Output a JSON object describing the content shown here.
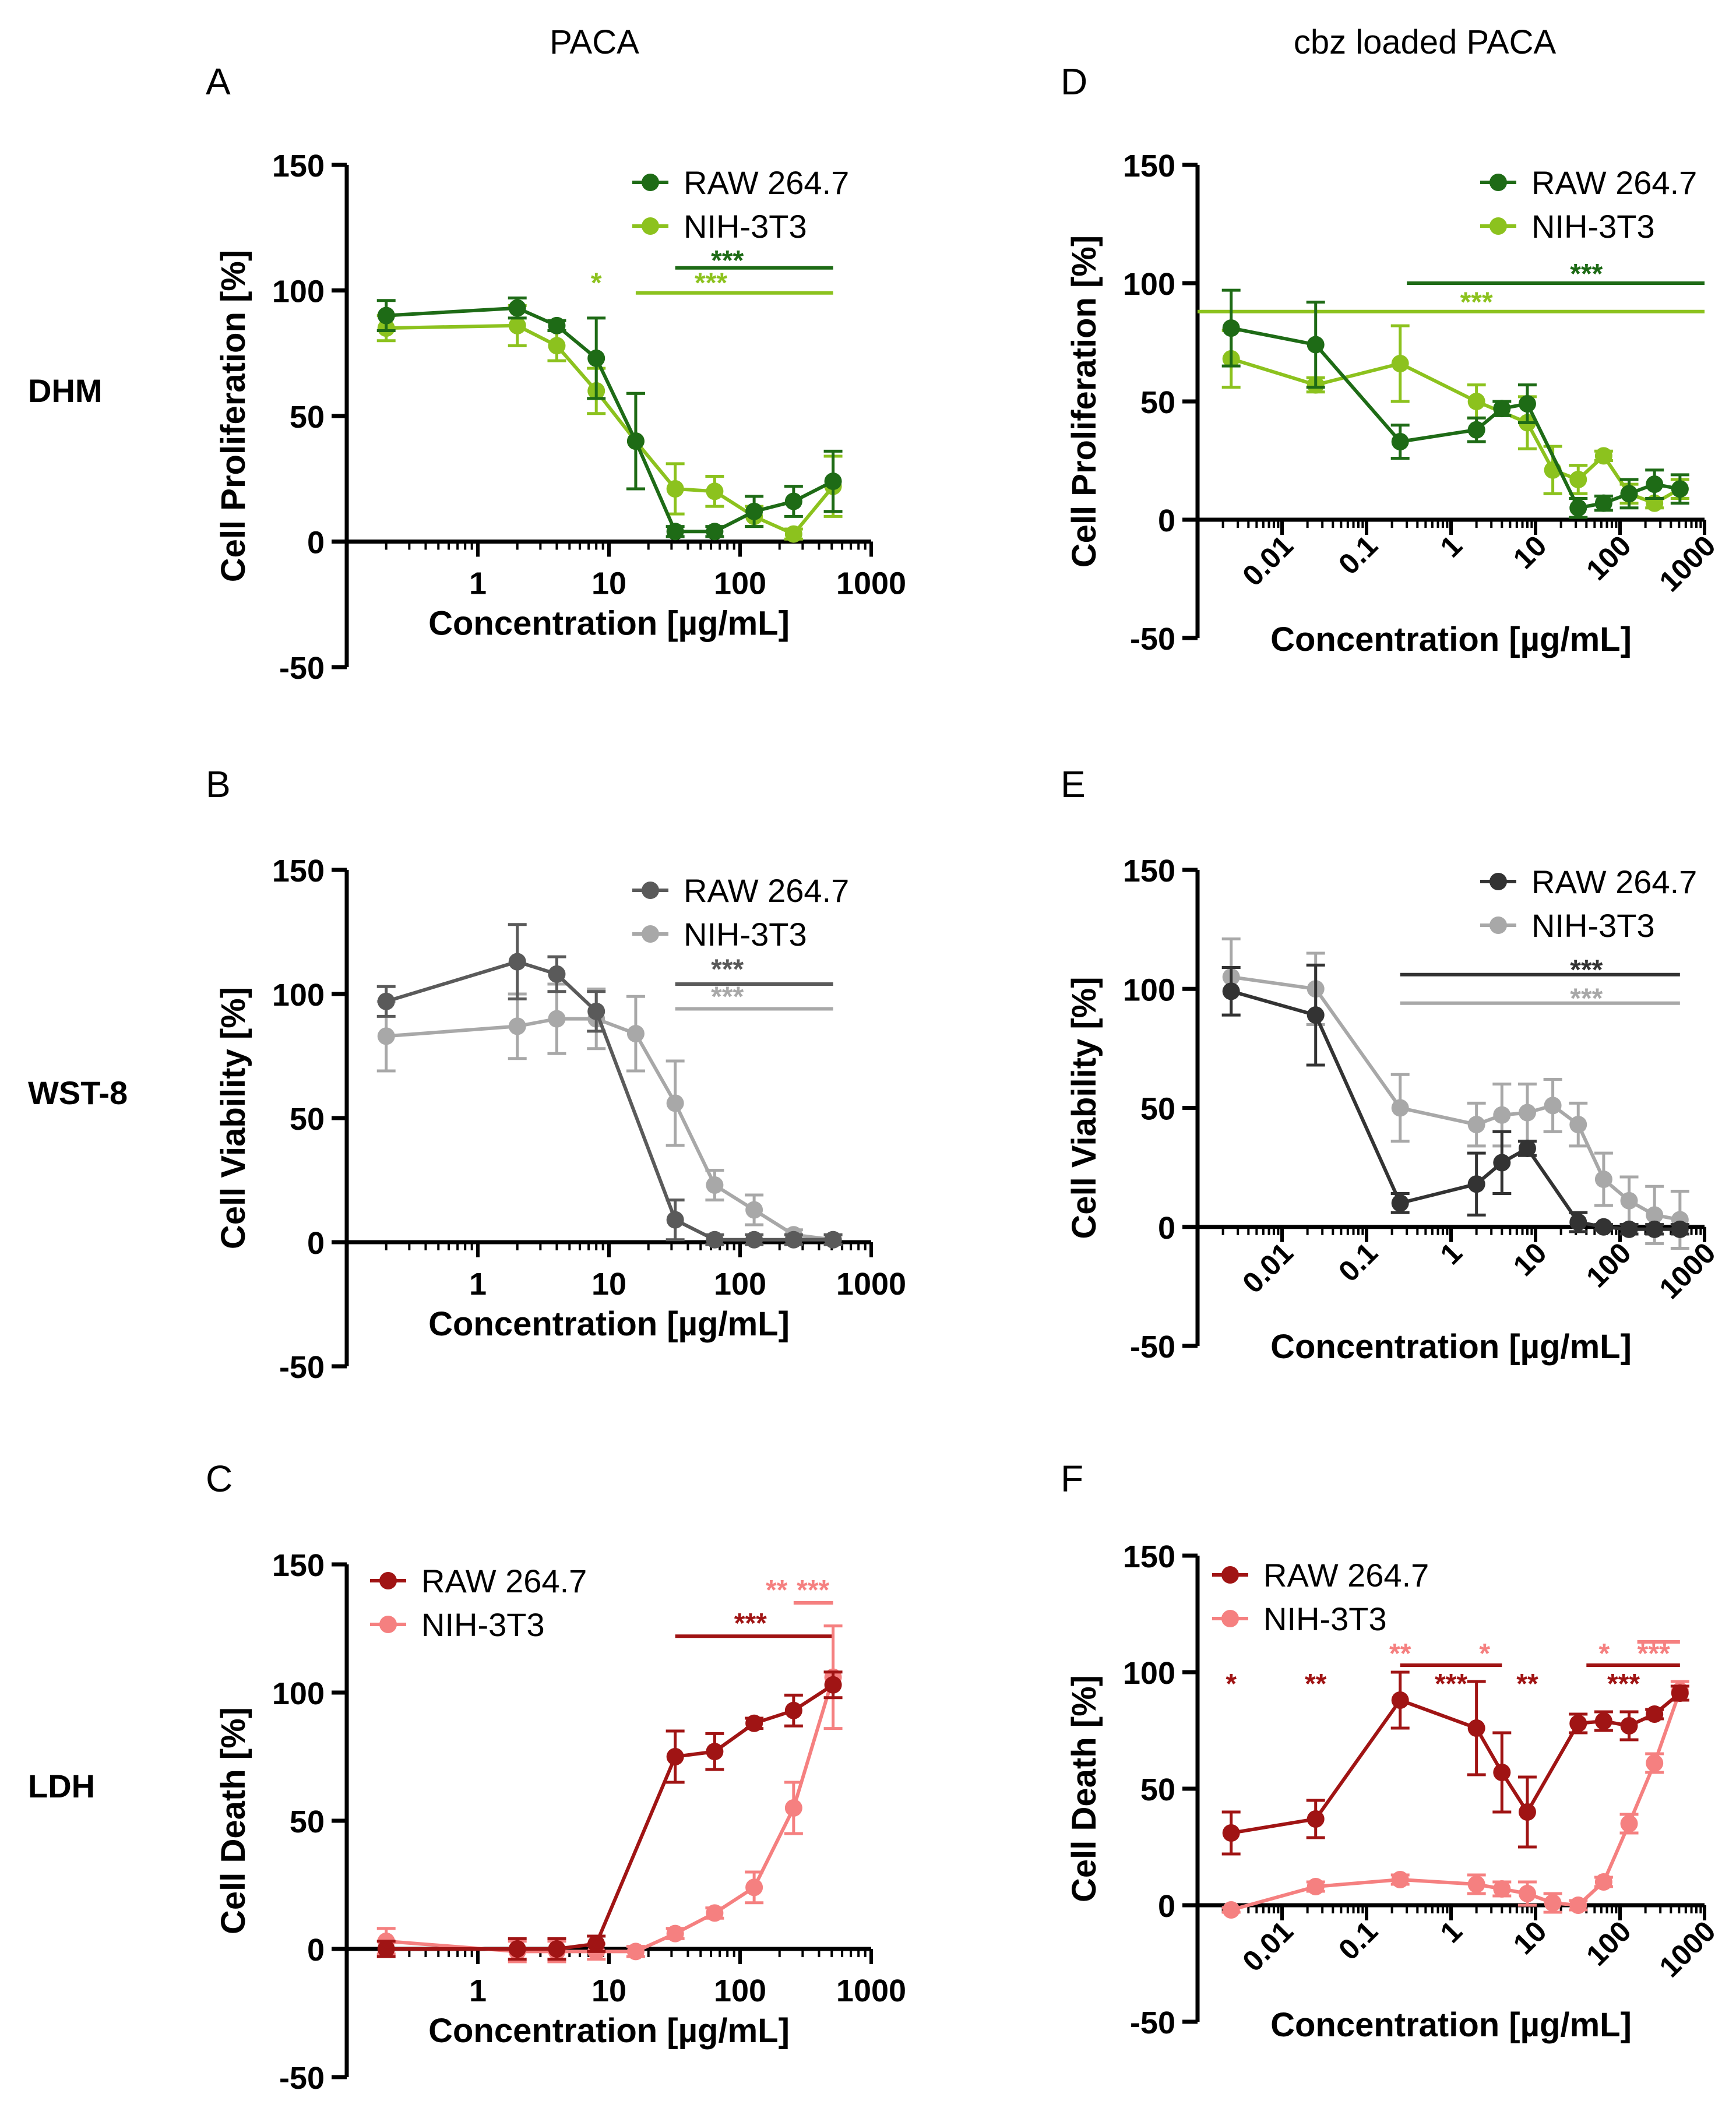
{
  "figure": {
    "column_titles": [
      "PACA",
      "cbz loaded PACA"
    ],
    "row_labels": [
      "DHM",
      "WST-8",
      "LDH"
    ],
    "legend_labels": [
      "RAW 264.7",
      "NIH-3T3"
    ]
  },
  "chart_data": [
    {
      "panel": "A",
      "type": "line",
      "xscale": "log",
      "xlabel": "Concentration [µg/mL]",
      "ylabel": "Cell Proliferation [%]",
      "ylim": [
        -50,
        150
      ],
      "yticks": [
        -50,
        0,
        50,
        100,
        150
      ],
      "xlim": [
        0.1,
        1000
      ],
      "xticks": [
        1,
        10,
        100,
        1000
      ],
      "xtick_labels": [
        "1",
        "10",
        "100",
        "1000"
      ],
      "colors": [
        "#1e6b16",
        "#8cc21e"
      ],
      "legend_position": "top-right",
      "series": [
        {
          "name": "RAW 264.7",
          "x": [
            0.2,
            2,
            4,
            8,
            16,
            32,
            64,
            128,
            256,
            512
          ],
          "y": [
            90,
            93,
            86,
            73,
            40,
            4,
            4,
            12,
            16,
            24
          ],
          "err": [
            6,
            4,
            2,
            16,
            19,
            2,
            2,
            6,
            6,
            12
          ]
        },
        {
          "name": "NIH-3T3",
          "x": [
            0.2,
            2,
            4,
            8,
            16,
            32,
            64,
            128,
            256,
            512
          ],
          "y": [
            85,
            86,
            78,
            60,
            40,
            21,
            20,
            10,
            3,
            22
          ],
          "err": [
            5,
            8,
            6,
            9,
            19,
            10,
            6,
            4,
            2,
            12
          ]
        }
      ],
      "annotations": [
        {
          "text": "*",
          "x": 8,
          "y": 103,
          "color": 1
        },
        {
          "text": "***",
          "x": 80,
          "y": 112,
          "color": 0
        },
        {
          "text": "***",
          "x": 60,
          "y": 103,
          "color": 1
        }
      ],
      "bars": [
        {
          "x1": 32,
          "x2": 512,
          "y": 109,
          "color": 0
        },
        {
          "x1": 16,
          "x2": 512,
          "y": 99,
          "color": 1
        }
      ]
    },
    {
      "panel": "B",
      "type": "line",
      "xscale": "log",
      "xlabel": "Concentration [µg/mL]",
      "ylabel": "Cell Viability [%]",
      "ylim": [
        -50,
        150
      ],
      "yticks": [
        -50,
        0,
        50,
        100,
        150
      ],
      "xlim": [
        0.1,
        1000
      ],
      "xticks": [
        1,
        10,
        100,
        1000
      ],
      "xtick_labels": [
        "1",
        "10",
        "100",
        "1000"
      ],
      "colors": [
        "#5a5a5a",
        "#a8a8a8"
      ],
      "legend_position": "top-right",
      "series": [
        {
          "name": "RAW 264.7",
          "x": [
            0.2,
            2,
            4,
            8,
            32,
            64,
            128,
            256,
            512
          ],
          "y": [
            97,
            113,
            108,
            93,
            9,
            1,
            1,
            1,
            1
          ],
          "err": [
            6,
            15,
            7,
            8,
            8,
            2,
            2,
            2,
            2
          ]
        },
        {
          "name": "NIH-3T3",
          "x": [
            0.2,
            2,
            4,
            8,
            16,
            32,
            64,
            128,
            256,
            512
          ],
          "y": [
            83,
            87,
            90,
            90,
            84,
            56,
            23,
            13,
            3,
            1
          ],
          "err": [
            14,
            13,
            14,
            12,
            15,
            17,
            6,
            6,
            2,
            2
          ]
        }
      ],
      "annotations": [
        {
          "text": "***",
          "x": 80,
          "y": 110,
          "color": 0
        },
        {
          "text": "***",
          "x": 80,
          "y": 99,
          "color": 1
        }
      ],
      "bars": [
        {
          "x1": 32,
          "x2": 512,
          "y": 104,
          "color": 0
        },
        {
          "x1": 32,
          "x2": 512,
          "y": 94,
          "color": 1
        }
      ]
    },
    {
      "panel": "C",
      "type": "line",
      "xscale": "log",
      "xlabel": "Concentration [µg/mL]",
      "ylabel": "Cell Death [%]",
      "ylim": [
        -50,
        150
      ],
      "yticks": [
        -50,
        0,
        50,
        100,
        150
      ],
      "xlim": [
        0.1,
        1000
      ],
      "xticks": [
        1,
        10,
        100,
        1000
      ],
      "xtick_labels": [
        "1",
        "10",
        "100",
        "1000"
      ],
      "colors": [
        "#a01414",
        "#f58080"
      ],
      "legend_position": "top-left",
      "series": [
        {
          "name": "RAW 264.7",
          "x": [
            0.2,
            2,
            4,
            8,
            32,
            64,
            128,
            256,
            512
          ],
          "y": [
            0,
            0,
            0,
            2,
            75,
            77,
            88,
            93,
            103
          ],
          "err": [
            3,
            4,
            4,
            3,
            10,
            7,
            2,
            6,
            5
          ]
        },
        {
          "name": "NIH-3T3",
          "x": [
            0.2,
            2,
            4,
            8,
            16,
            32,
            64,
            128,
            256,
            512
          ],
          "y": [
            3,
            -1,
            -1,
            -1,
            -1,
            6,
            14,
            24,
            55,
            106
          ],
          "err": [
            5,
            4,
            4,
            3,
            2,
            2,
            2,
            6,
            10,
            20
          ]
        }
      ],
      "annotations": [
        {
          "text": "**",
          "x": 190,
          "y": 140,
          "color": 1
        },
        {
          "text": "***",
          "x": 360,
          "y": 140,
          "color": 1
        },
        {
          "text": "***",
          "x": 120,
          "y": 127,
          "color": 0
        }
      ],
      "bars": [
        {
          "x1": 256,
          "x2": 512,
          "y": 135,
          "color": 1
        },
        {
          "x1": 32,
          "x2": 512,
          "y": 122,
          "color": 0
        }
      ]
    },
    {
      "panel": "D",
      "type": "line",
      "xscale": "log",
      "xlabel": "Concentration [µg/mL]",
      "ylabel": "Cell Proliferation [%]",
      "ylim": [
        -50,
        150
      ],
      "yticks": [
        -50,
        0,
        50,
        100,
        150
      ],
      "xlim": [
        0.001,
        1000
      ],
      "xticks": [
        0.01,
        0.1,
        1,
        10,
        100,
        1000
      ],
      "xtick_labels": [
        "0.01",
        "0.1",
        "1",
        "10",
        "100",
        "1000"
      ],
      "colors": [
        "#1e6b16",
        "#8cc21e"
      ],
      "legend_position": "top-right",
      "series": [
        {
          "name": "RAW 264.7",
          "x": [
            0.0025,
            0.025,
            0.25,
            2,
            4,
            8,
            32,
            64,
            128,
            256,
            512
          ],
          "y": [
            81,
            74,
            33,
            38,
            47,
            49,
            5,
            7,
            11,
            15,
            13
          ],
          "err": [
            16,
            18,
            7,
            5,
            3,
            8,
            4,
            3,
            6,
            6,
            6
          ]
        },
        {
          "name": "NIH-3T3",
          "x": [
            0.0025,
            0.025,
            0.25,
            2,
            8,
            16,
            32,
            64,
            128,
            256,
            512
          ],
          "y": [
            68,
            57,
            66,
            50,
            41,
            21,
            17,
            27,
            11,
            7,
            13
          ],
          "err": [
            12,
            3,
            16,
            7,
            11,
            10,
            6,
            2,
            4,
            2,
            4
          ]
        }
      ],
      "annotations": [
        {
          "text": "***",
          "x": 40,
          "y": 104,
          "color": 0
        },
        {
          "text": "***",
          "x": 2,
          "y": 92,
          "color": 1
        }
      ],
      "bars": [
        {
          "x1": 0.3,
          "x2": 1000,
          "y": 100,
          "color": 0
        },
        {
          "x1": 0.001,
          "x2": 1000,
          "y": 88,
          "color": 1
        }
      ]
    },
    {
      "panel": "E",
      "type": "line",
      "xscale": "log",
      "xlabel": "Concentration [µg/mL]",
      "ylabel": "Cell Viability [%]",
      "ylim": [
        -50,
        150
      ],
      "yticks": [
        -50,
        0,
        50,
        100,
        150
      ],
      "xlim": [
        0.001,
        1000
      ],
      "xticks": [
        0.01,
        0.1,
        1,
        10,
        100,
        1000
      ],
      "xtick_labels": [
        "0.01",
        "0.1",
        "1",
        "10",
        "100",
        "1000"
      ],
      "colors": [
        "#333333",
        "#a8a8a8"
      ],
      "legend_position": "top-right",
      "series": [
        {
          "name": "RAW 264.7",
          "x": [
            0.0025,
            0.025,
            0.25,
            2,
            4,
            8,
            32,
            64,
            128,
            256,
            512
          ],
          "y": [
            99,
            89,
            10,
            18,
            27,
            33,
            2,
            0,
            -1,
            -1,
            -1
          ],
          "err": [
            10,
            21,
            4,
            13,
            13,
            3,
            4,
            1,
            2,
            2,
            2
          ]
        },
        {
          "name": "NIH-3T3",
          "x": [
            0.0025,
            0.025,
            0.25,
            2,
            4,
            8,
            16,
            32,
            64,
            128,
            256,
            512
          ],
          "y": [
            105,
            100,
            50,
            43,
            47,
            48,
            51,
            43,
            20,
            11,
            5,
            3
          ],
          "err": [
            16,
            15,
            14,
            9,
            13,
            12,
            11,
            9,
            11,
            10,
            12,
            12
          ]
        }
      ],
      "annotations": [
        {
          "text": "***",
          "x": 40,
          "y": 108,
          "color": 0
        },
        {
          "text": "***",
          "x": 40,
          "y": 96,
          "color": 1
        }
      ],
      "bars": [
        {
          "x1": 0.25,
          "x2": 512,
          "y": 106,
          "color": 0
        },
        {
          "x1": 0.25,
          "x2": 512,
          "y": 94,
          "color": 1
        }
      ]
    },
    {
      "panel": "F",
      "type": "line",
      "xscale": "log",
      "xlabel": "Concentration [µg/mL]",
      "ylabel": "Cell Death [%]",
      "ylim": [
        -50,
        150
      ],
      "yticks": [
        -50,
        0,
        50,
        100,
        150
      ],
      "xlim": [
        0.001,
        1000
      ],
      "xticks": [
        0.01,
        0.1,
        1,
        10,
        100,
        1000
      ],
      "xtick_labels": [
        "0.01",
        "0.1",
        "1",
        "10",
        "100",
        "1000"
      ],
      "colors": [
        "#a01414",
        "#f58080"
      ],
      "legend_position": "top-left",
      "series": [
        {
          "name": "RAW 264.7",
          "x": [
            0.0025,
            0.025,
            0.25,
            2,
            4,
            8,
            32,
            64,
            128,
            256,
            512
          ],
          "y": [
            31,
            37,
            88,
            76,
            57,
            40,
            78,
            79,
            77,
            82,
            91
          ],
          "err": [
            9,
            8,
            12,
            20,
            17,
            15,
            4,
            4,
            6,
            2,
            3
          ]
        },
        {
          "name": "NIH-3T3",
          "x": [
            0.0025,
            0.025,
            0.25,
            2,
            4,
            8,
            16,
            32,
            64,
            128,
            256,
            512
          ],
          "y": [
            -2,
            8,
            11,
            9,
            7,
            5,
            1,
            0,
            10,
            35,
            61,
            92
          ],
          "err": [
            1,
            2,
            2,
            4,
            3,
            5,
            4,
            2,
            2,
            4,
            4,
            4
          ]
        }
      ],
      "annotations": [
        {
          "text": "*",
          "x": 0.0025,
          "y": 95,
          "color": 0
        },
        {
          "text": "**",
          "x": 0.025,
          "y": 95,
          "color": 0
        },
        {
          "text": "**",
          "x": 0.25,
          "y": 108,
          "color": 1
        },
        {
          "text": "*",
          "x": 2.5,
          "y": 108,
          "color": 1
        },
        {
          "text": "***",
          "x": 1,
          "y": 95,
          "color": 0
        },
        {
          "text": "**",
          "x": 8,
          "y": 95,
          "color": 0
        },
        {
          "text": "*",
          "x": 65,
          "y": 108,
          "color": 1
        },
        {
          "text": "***",
          "x": 250,
          "y": 108,
          "color": 1
        },
        {
          "text": "***",
          "x": 110,
          "y": 95,
          "color": 0
        }
      ],
      "bars": [
        {
          "x1": 0.25,
          "x2": 4,
          "y": 103,
          "color": 0
        },
        {
          "x1": 40,
          "x2": 512,
          "y": 103,
          "color": 0
        },
        {
          "x1": 160,
          "x2": 512,
          "y": 113,
          "color": 1
        }
      ]
    }
  ]
}
